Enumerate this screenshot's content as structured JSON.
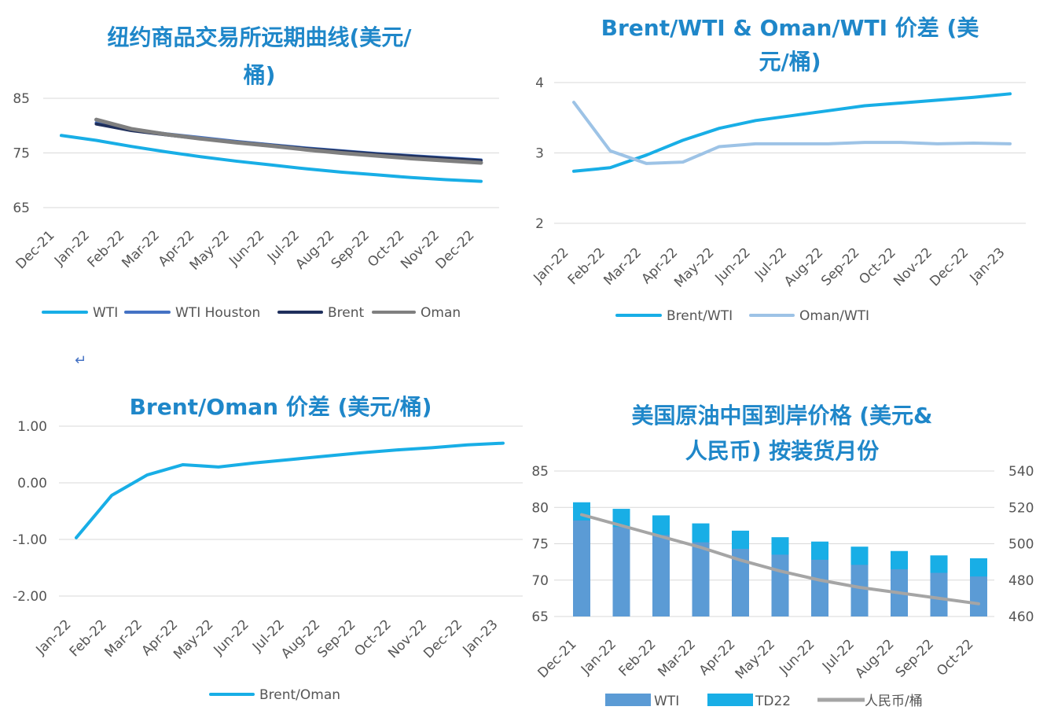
{
  "return_mark": "↵",
  "chart_data": [
    {
      "type": "line",
      "title_lines": [
        "纽约商品交易所远期曲线(美元/",
        "桶)"
      ],
      "categories": [
        "Dec-21",
        "Jan-22",
        "Feb-22",
        "Mar-22",
        "Apr-22",
        "May-22",
        "Jun-22",
        "Jul-22",
        "Aug-22",
        "Sep-22",
        "Oct-22",
        "Nov-22",
        "Dec-22"
      ],
      "ylim": [
        65,
        85
      ],
      "yticks": [
        65,
        75,
        85
      ],
      "series": [
        {
          "name": "WTI",
          "color": "#18aee6",
          "values": [
            78.2,
            77.3,
            76.2,
            75.2,
            74.3,
            73.5,
            72.8,
            72.1,
            71.5,
            71.0,
            70.5,
            70.1,
            69.8
          ]
        },
        {
          "name": "WTI Houston",
          "color": "#4472c4",
          "values": [
            null,
            80.5,
            79.3,
            78.5,
            77.8,
            77.1,
            76.5,
            75.9,
            75.4,
            74.9,
            74.5,
            74.1,
            73.7
          ]
        },
        {
          "name": "Brent",
          "color": "#1f2f5c",
          "values": [
            null,
            80.3,
            79.1,
            78.3,
            77.6,
            77.0,
            76.4,
            75.8,
            75.3,
            74.8,
            74.4,
            74.0,
            73.6
          ]
        },
        {
          "name": "Oman",
          "color": "#7f7f7f",
          "values": [
            null,
            81.1,
            79.4,
            78.4,
            77.6,
            76.9,
            76.3,
            75.6,
            75.0,
            74.5,
            74.0,
            73.6,
            73.2
          ]
        }
      ]
    },
    {
      "type": "line",
      "title_lines": [
        "Brent/WTI & Oman/WTI 价差 (美",
        "元/桶)"
      ],
      "categories": [
        "Jan-22",
        "Feb-22",
        "Mar-22",
        "Apr-22",
        "May-22",
        "Jun-22",
        "Jul-22",
        "Aug-22",
        "Sep-22",
        "Oct-22",
        "Nov-22",
        "Dec-22",
        "Jan-23"
      ],
      "ylim": [
        2,
        4
      ],
      "yticks": [
        2,
        3,
        4
      ],
      "series": [
        {
          "name": "Brent/WTI",
          "color": "#18aee6",
          "values": [
            2.74,
            2.79,
            2.97,
            3.18,
            3.35,
            3.46,
            3.53,
            3.6,
            3.67,
            3.71,
            3.75,
            3.79,
            3.84
          ]
        },
        {
          "name": "Oman/WTI",
          "color": "#9dc3e6",
          "values": [
            3.72,
            3.03,
            2.85,
            2.87,
            3.09,
            3.13,
            3.13,
            3.13,
            3.15,
            3.15,
            3.13,
            3.14,
            3.13
          ]
        }
      ]
    },
    {
      "type": "line",
      "title_lines": [
        "Brent/Oman 价差 (美元/桶)"
      ],
      "categories": [
        "Jan-22",
        "Feb-22",
        "Mar-22",
        "Apr-22",
        "May-22",
        "Jun-22",
        "Jul-22",
        "Aug-22",
        "Sep-22",
        "Oct-22",
        "Nov-22",
        "Dec-22",
        "Jan-23"
      ],
      "ylim": [
        -2,
        1
      ],
      "yticks": [
        -2,
        -1,
        0,
        1
      ],
      "ytick_labels": [
        "-2.00",
        "-1.00",
        "0.00",
        "1.00"
      ],
      "series": [
        {
          "name": "Brent/Oman",
          "color": "#18aee6",
          "values": [
            -0.97,
            -0.22,
            0.14,
            0.32,
            0.28,
            0.35,
            0.41,
            0.47,
            0.53,
            0.58,
            0.62,
            0.67,
            0.7
          ]
        }
      ]
    },
    {
      "type": "bar",
      "title_lines": [
        "美国原油中国到岸价格 (美元&",
        "人民币) 按装货月份"
      ],
      "categories": [
        "Dec-21",
        "Jan-22",
        "Feb-22",
        "Mar-22",
        "Apr-22",
        "May-22",
        "Jun-22",
        "Jul-22",
        "Aug-22",
        "Sep-22",
        "Oct-22"
      ],
      "ylim": [
        65,
        85
      ],
      "yticks": [
        65,
        70,
        75,
        80,
        85
      ],
      "y2lim": [
        460,
        540
      ],
      "y2ticks": [
        460,
        480,
        500,
        520,
        540
      ],
      "series": [
        {
          "name": "WTI",
          "color": "#5b9bd5",
          "kind": "bar",
          "values": [
            78.2,
            77.3,
            76.2,
            75.2,
            74.3,
            73.5,
            72.8,
            72.1,
            71.5,
            71.0,
            70.5
          ]
        },
        {
          "name": "TD22",
          "color": "#18aee6",
          "kind": "bar",
          "values": [
            80.7,
            79.8,
            78.9,
            77.8,
            76.8,
            75.9,
            75.3,
            74.6,
            74.0,
            73.4,
            73.0
          ]
        },
        {
          "name": "人民币/桶",
          "color": "#a5a5a5",
          "kind": "line",
          "axis": "right",
          "values": [
            516,
            510,
            504,
            498,
            491,
            485,
            480,
            476,
            473,
            470,
            467
          ]
        }
      ]
    }
  ]
}
